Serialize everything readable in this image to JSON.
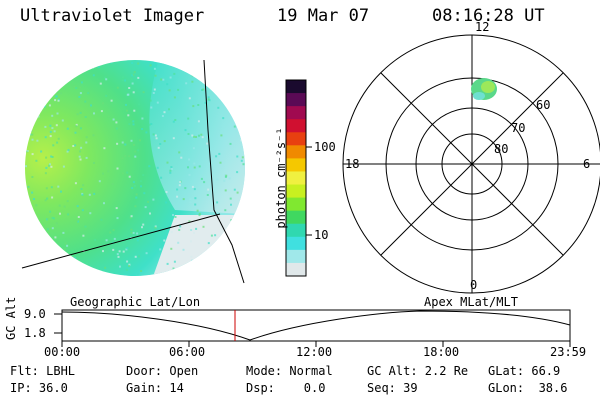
{
  "header": {
    "instrument": "Ultraviolet Imager",
    "date": "19 Mar 07",
    "time": "08:16:28 UT"
  },
  "colorbar": {
    "unit_label": "photon cm⁻²s⁻¹",
    "ticks": [
      "100",
      "10"
    ],
    "colors": [
      "#1a0a2e",
      "#5a0a55",
      "#a00a50",
      "#d01030",
      "#e84010",
      "#f08a00",
      "#f5c800",
      "#f0f040",
      "#c8f020",
      "#80e830",
      "#40d860",
      "#30d8b0",
      "#40e0e0",
      "#a0e8ea",
      "#e0e8ea"
    ]
  },
  "image_panel": {
    "colors": {
      "limb": "#64e07a",
      "dayside": "#4fe39a",
      "terminator": "#3fe0c8",
      "nightside": "#d7ecee"
    }
  },
  "polar_plot": {
    "lat_labels": [
      "80",
      "70",
      "60"
    ],
    "mlt_labels": {
      "top": "12",
      "bottom": "0",
      "left": "18",
      "right": "6"
    },
    "spot_color": "#5ad88a"
  },
  "timeline": {
    "left_title": "Geographic Lat/Lon",
    "right_title": "Apex MLat/MLT",
    "axis_label": "GC Alt",
    "y_ticks": [
      "9.0",
      "1.8"
    ],
    "x_ticks": [
      "00:00",
      "06:00",
      "12:00",
      "18:00",
      "23:59"
    ],
    "current_marker_color": "#cc0000"
  },
  "footer": {
    "row1": {
      "flt": "Flt: LBHL",
      "door": "Door: Open",
      "mode": "Mode: Normal",
      "gcalt": "GC Alt: 2.2 Re",
      "glat": "GLat: 66.9"
    },
    "row2": {
      "ip": "IP: 36.0",
      "gain": "Gain: 14",
      "dsp": "Dsp:    0.0",
      "seq": "Seq: 39",
      "glon": "GLon:  38.6"
    }
  }
}
